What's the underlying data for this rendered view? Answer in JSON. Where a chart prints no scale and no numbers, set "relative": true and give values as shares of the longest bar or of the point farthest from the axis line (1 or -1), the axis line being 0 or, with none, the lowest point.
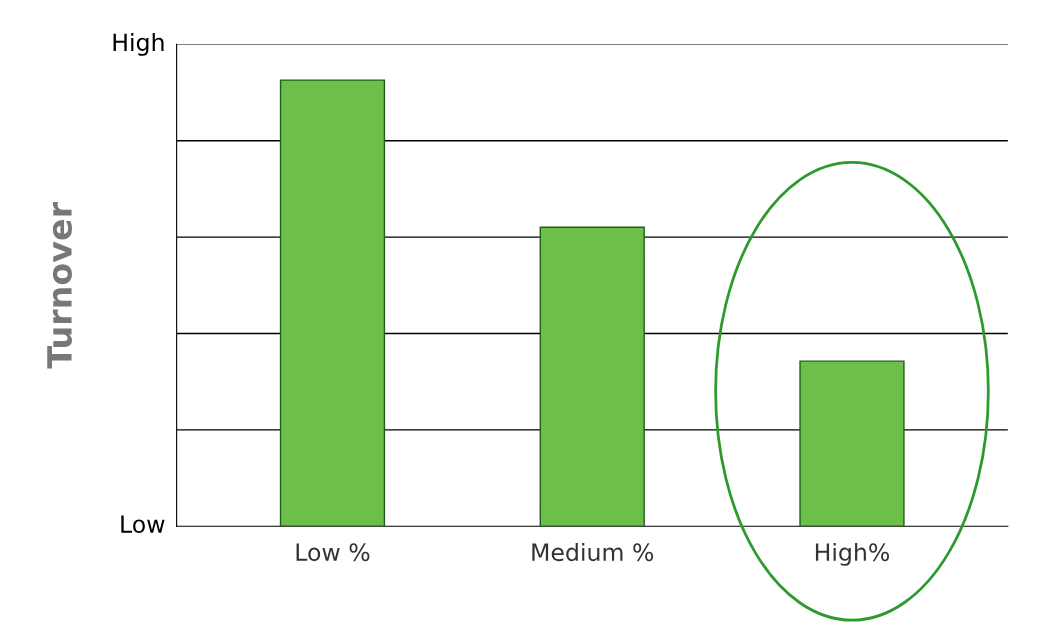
{
  "chart_data": {
    "type": "bar",
    "ylabel": "Turnover",
    "relative": true,
    "categories": [
      "Low %",
      "Medium %",
      "High%"
    ],
    "values": [
      1,
      0.67,
      0.37
    ],
    "color": "#6cc04a",
    "annotations": [
      "Low",
      "High"
    ],
    "grid": "y"
  }
}
